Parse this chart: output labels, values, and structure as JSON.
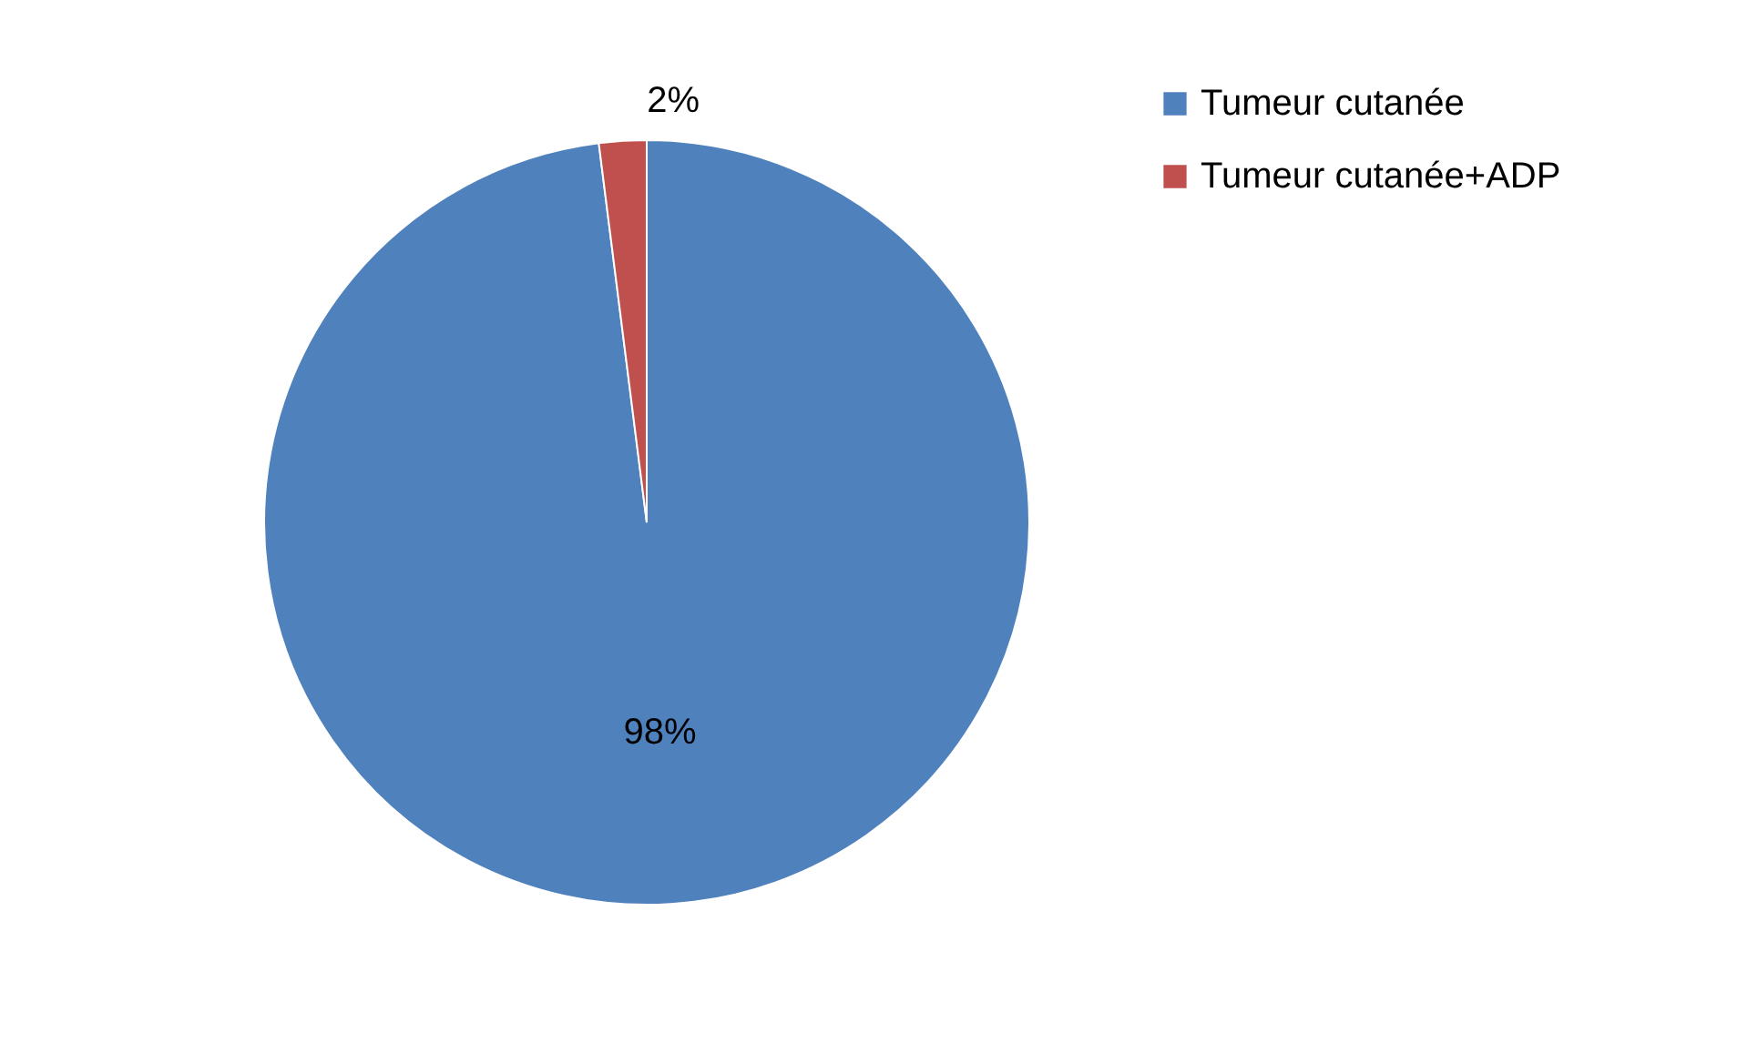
{
  "chart_data": {
    "type": "pie",
    "categories": [
      "Tumeur cutanée",
      "Tumeur cutanée+ADP"
    ],
    "values": [
      98,
      2
    ],
    "colors": [
      "#4f81bd",
      "#c0504d"
    ],
    "value_labels": [
      "98%",
      "2%"
    ],
    "legend": "right"
  }
}
